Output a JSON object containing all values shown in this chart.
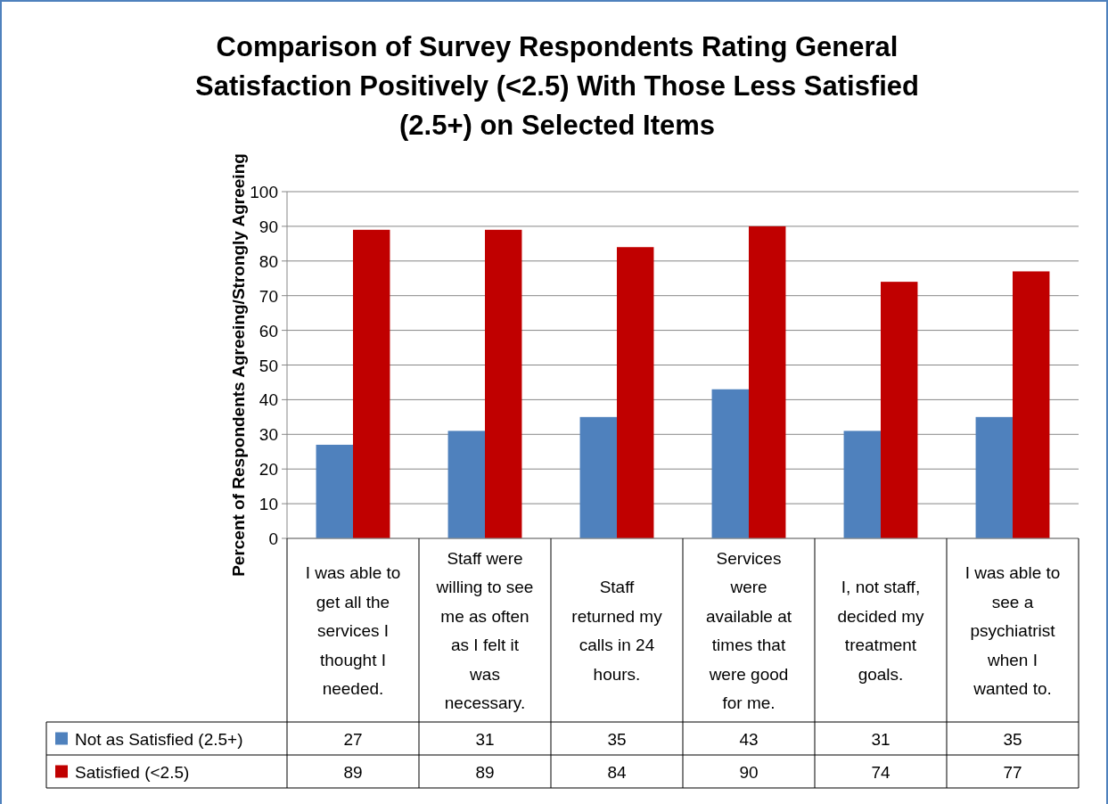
{
  "chart_data": {
    "type": "bar",
    "title": "Comparison of Survey Respondents Rating General Satisfaction Positively (<2.5) With Those Less Satisfied (2.5+) on Selected Items",
    "ylabel": "Percent of Respondents Agreeing/Strongly Agreeing",
    "categories": [
      "I was able to get all the services I thought I needed.",
      "Staff were willing to see me as often as I felt it was necessary.",
      "Staff returned my calls in 24 hours.",
      "Services were available at times that were good for me.",
      "I, not staff, decided my treatment goals.",
      "I was able to see a psychiatrist when I wanted to."
    ],
    "series": [
      {
        "name": "Not as Satisfied (2.5+)",
        "color": "#4f81bd",
        "values": [
          27,
          31,
          35,
          43,
          31,
          35
        ]
      },
      {
        "name": "Satisfied (<2.5)",
        "color": "#c00000",
        "values": [
          89,
          89,
          84,
          90,
          74,
          77
        ]
      }
    ],
    "ylim": [
      0,
      100
    ],
    "yticks": [
      0,
      10,
      20,
      30,
      40,
      50,
      60,
      70,
      80,
      90,
      100
    ],
    "grid": "y",
    "legend": "bottom",
    "data_labels": true
  }
}
